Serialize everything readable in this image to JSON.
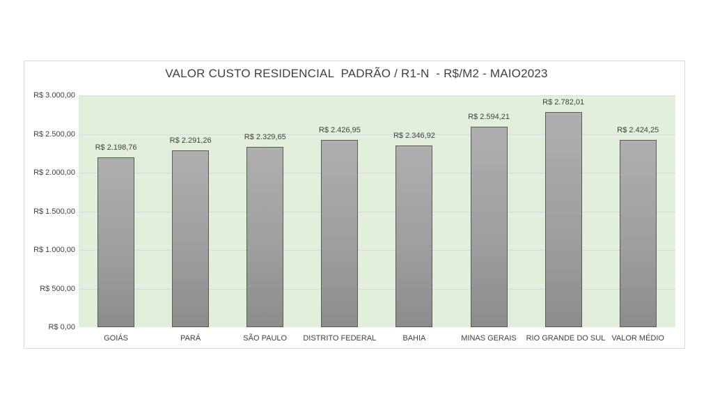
{
  "chart_data": {
    "type": "bar",
    "title": "VALOR CUSTO RESIDENCIAL  PADRÃO / R1-N  - R$/M2 - MAIO2023",
    "xlabel": "",
    "ylabel": "",
    "ylim": [
      0,
      3000
    ],
    "grid": true,
    "legend": "none",
    "categories": [
      "GOIÁS",
      "PARÁ",
      "SÃO PAULO",
      "DISTRITO FEDERAL",
      "BAHIA",
      "MINAS GERAIS",
      "RIO GRANDE DO SUL",
      "VALOR MÉDIO"
    ],
    "values": [
      2198.76,
      2291.26,
      2329.65,
      2426.95,
      2346.92,
      2594.21,
      2782.01,
      2424.25
    ],
    "data_labels": [
      "R$ 2.198,76",
      "R$ 2.291,26",
      "R$ 2.329,65",
      "R$ 2.426,95",
      "R$ 2.346,92",
      "R$ 2.594,21",
      "R$ 2.782,01",
      "R$ 2.424,25"
    ],
    "y_ticks": [
      {
        "value": 3000,
        "label": "R$ 3.000,00"
      },
      {
        "value": 2500,
        "label": "R$ 2.500,00"
      },
      {
        "value": 2000,
        "label": "R$ 2.000,00"
      },
      {
        "value": 1500,
        "label": "R$ 1.500,00"
      },
      {
        "value": 1000,
        "label": "R$ 1.000,00"
      },
      {
        "value": 500,
        "label": "R$ 500,00"
      },
      {
        "value": 0,
        "label": "R$ 0,00"
      }
    ]
  },
  "colors": {
    "plot_background": "#e2efda",
    "bar_fill_top": "#afafaf",
    "bar_fill_bottom": "#8c8c8c",
    "bar_border": "#595959",
    "gridline": "#d4dbe6",
    "text": "#404040"
  }
}
